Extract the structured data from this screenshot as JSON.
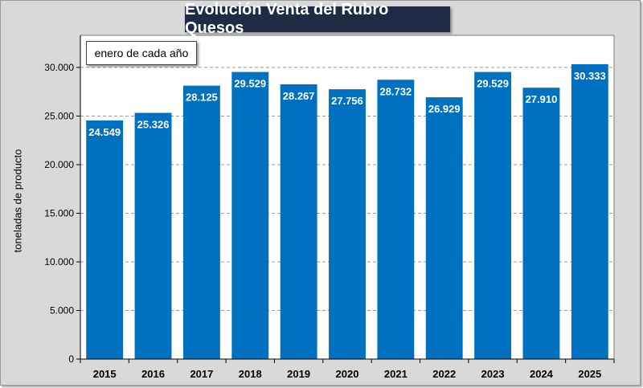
{
  "title": "Evolución Venta del Rubro Quesos",
  "annotation": "enero de cada año",
  "colors": {
    "bar": "#0070c0",
    "title_bg": "#1f2a44",
    "background": "#d9d9d9",
    "grid": "#9a9a9a"
  },
  "chart_data": {
    "type": "bar",
    "title": "Evolución Venta del Rubro Quesos",
    "xlabel": "",
    "ylabel": "toneladas de producto",
    "categories": [
      "2015",
      "2016",
      "2017",
      "2018",
      "2019",
      "2020",
      "2021",
      "2022",
      "2023",
      "2024",
      "2025"
    ],
    "values": [
      24549,
      25326,
      28125,
      29529,
      28267,
      27756,
      28732,
      26929,
      29529,
      27910,
      30333
    ],
    "data_labels": [
      "24.549",
      "25.326",
      "28.125",
      "29.529",
      "28.267",
      "27.756",
      "28.732",
      "26.929",
      "29.529",
      "27.910",
      "30.333"
    ],
    "ylim": [
      0,
      30000
    ],
    "yticks": [
      0,
      5000,
      10000,
      15000,
      20000,
      25000,
      30000
    ],
    "ytick_labels": [
      "0",
      "5.000",
      "10.000",
      "15.000",
      "20.000",
      "25.000",
      "30.000"
    ],
    "grid": true,
    "legend": "none"
  }
}
